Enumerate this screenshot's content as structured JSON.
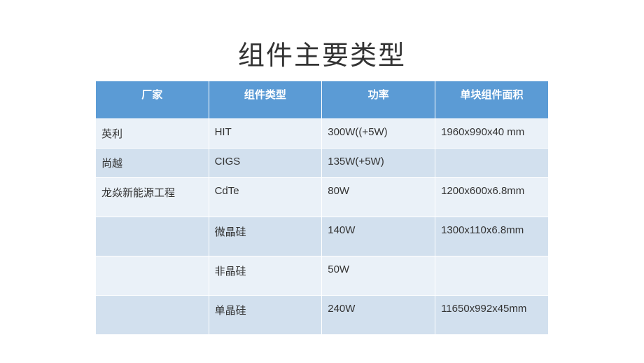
{
  "title": "组件主要类型",
  "table": {
    "headers": [
      "厂家",
      "组件类型",
      "功率",
      "单块组件面积"
    ],
    "rows": [
      [
        "英利",
        "HIT",
        "300W((+5W)",
        "1960x990x40 mm"
      ],
      [
        "尚越",
        "CIGS",
        "135W(+5W)",
        ""
      ],
      [
        "龙焱新能源工程",
        "CdTe",
        "80W",
        "1200x600x6.8mm"
      ],
      [
        "",
        "微晶硅",
        "140W",
        "1300x110x6.8mm"
      ],
      [
        "",
        "非晶硅",
        "50W",
        ""
      ],
      [
        "",
        "单晶硅",
        "240W",
        "11650x992x45mm"
      ]
    ]
  },
  "style": {
    "header_bg": "#5b9bd5",
    "header_text": "#ffffff",
    "row_light_bg": "#eaf1f8",
    "row_dark_bg": "#d2e0ee",
    "text_color": "#333333"
  }
}
